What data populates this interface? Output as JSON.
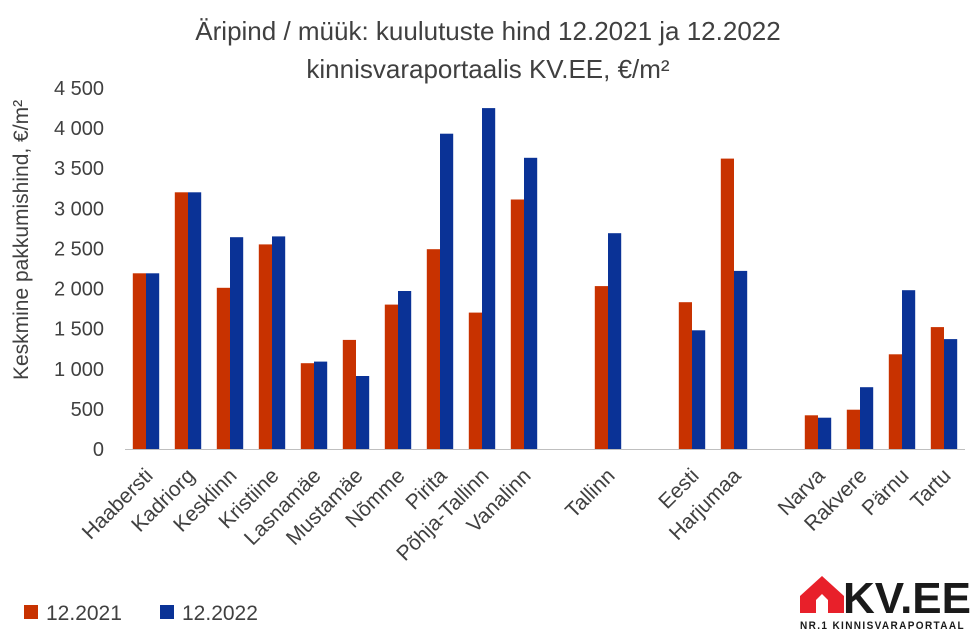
{
  "chart_data": {
    "type": "bar",
    "title": [
      "Äripind / müük: kuulutuste hind 12.2021 ja 12.2022",
      "kinnisvaraportaalis KV.EE, €/m²"
    ],
    "xlabel": "",
    "ylabel": "Keskmine pakkumishind, €/m²",
    "ylim": [
      0,
      4500
    ],
    "yticks": [
      0,
      500,
      1000,
      1500,
      2000,
      2500,
      3000,
      3500,
      4000,
      4500
    ],
    "ytick_labels": [
      "0",
      "500",
      "1 000",
      "1 500",
      "2 000",
      "2 500",
      "3 000",
      "3 500",
      "4 000",
      "4 500"
    ],
    "grid": false,
    "legend_position": "bottom-left",
    "categories": [
      "Haabersti",
      "Kadriorg",
      "Kesklinn",
      "Kristiine",
      "Lasnamäe",
      "Mustamäe",
      "Nõmme",
      "Pirita",
      "Põhja-Tallinn",
      "Vanalinn",
      "",
      "Tallinn",
      "",
      "Eesti",
      "Harjumaa",
      "",
      "Narva",
      "Rakvere",
      "Pärnu",
      "Tartu"
    ],
    "series": [
      {
        "name": "12.2021",
        "color": "#c83200",
        "values": [
          2190,
          3200,
          2010,
          2550,
          1070,
          1360,
          1800,
          2490,
          1700,
          3110,
          null,
          2030,
          null,
          1830,
          3620,
          null,
          420,
          490,
          1180,
          1520
        ]
      },
      {
        "name": "12.2022",
        "color": "#0a3296",
        "values": [
          2190,
          3200,
          2640,
          2650,
          1090,
          910,
          1970,
          3930,
          4250,
          3630,
          null,
          2690,
          null,
          1480,
          2220,
          null,
          390,
          770,
          1980,
          1370
        ]
      }
    ]
  },
  "logo": {
    "text": "KV.EE",
    "tagline": "NR.1 KINNISVARAPORTAAL",
    "color": "#e8202a"
  }
}
